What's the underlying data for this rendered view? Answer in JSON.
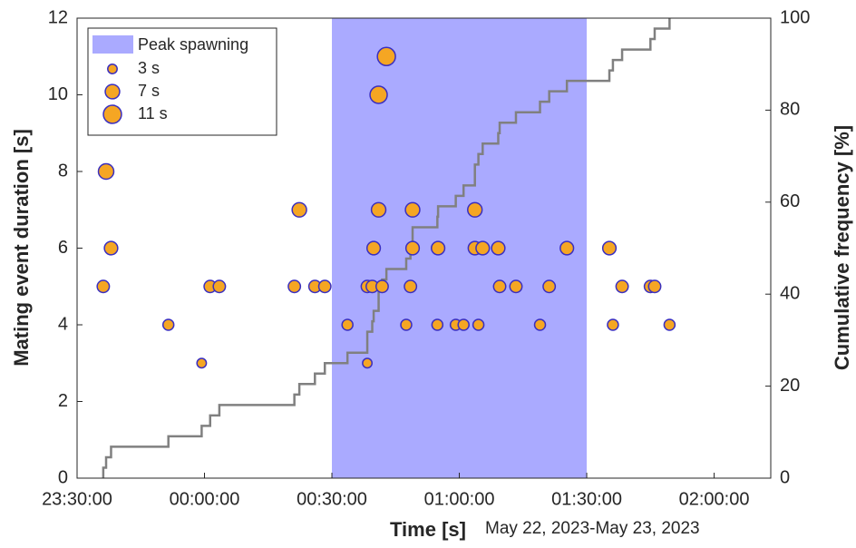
{
  "chart_data": {
    "type": "scatter",
    "xlabel": "Time [s]",
    "xlabel_note": "May 22, 2023-May 23, 2023",
    "ylabel": "Mating event duration [s]",
    "y2label": "Cumulative frequency [%]",
    "xlim": [
      0,
      9800
    ],
    "xticks": [
      {
        "value": 0,
        "label": "23:30:00"
      },
      {
        "value": 1800,
        "label": "00:00:00"
      },
      {
        "value": 3600,
        "label": "00:30:00"
      },
      {
        "value": 5400,
        "label": "01:00:00"
      },
      {
        "value": 7200,
        "label": "01:30:00"
      },
      {
        "value": 9000,
        "label": "02:00:00"
      }
    ],
    "ylim": [
      0,
      12
    ],
    "yticks": [
      0,
      2,
      4,
      6,
      8,
      10,
      12
    ],
    "y2lim": [
      0,
      100
    ],
    "y2ticks": [
      0,
      20,
      40,
      60,
      80,
      100
    ],
    "shaded_region": {
      "name": "Peak spawning",
      "x": [
        3600,
        7200
      ],
      "color": "#aaaaff"
    },
    "size_legend": [
      {
        "value": 3,
        "label": "3 s"
      },
      {
        "value": 7,
        "label": "7 s"
      },
      {
        "value": 11,
        "label": "11 s"
      }
    ],
    "cumulative_color": "#808080",
    "series": [
      {
        "color": "#f5a623",
        "edge_color": "#3a2fc0",
        "x": [
          370,
          410,
          480,
          1290,
          1760,
          1880,
          2010,
          3070,
          3140,
          3360,
          3500,
          3820,
          4100,
          4100,
          4170,
          4190,
          4260,
          4260,
          4310,
          4370,
          4650,
          4710,
          4740,
          4740,
          5090,
          5100,
          5350,
          5460,
          5620,
          5620,
          5670,
          5730,
          5950,
          5970,
          6200,
          6540,
          6670,
          6920,
          7520,
          7570,
          7700,
          8100,
          8160,
          8370
        ],
        "values": [
          5,
          8,
          6,
          4,
          3,
          5,
          5,
          5,
          7,
          5,
          5,
          4,
          3,
          5,
          5,
          6,
          10,
          7,
          5,
          11,
          4,
          5,
          7,
          6,
          4,
          6,
          4,
          4,
          6,
          7,
          4,
          6,
          6,
          5,
          5,
          4,
          5,
          6,
          6,
          4,
          5,
          5,
          5,
          4
        ]
      }
    ]
  }
}
